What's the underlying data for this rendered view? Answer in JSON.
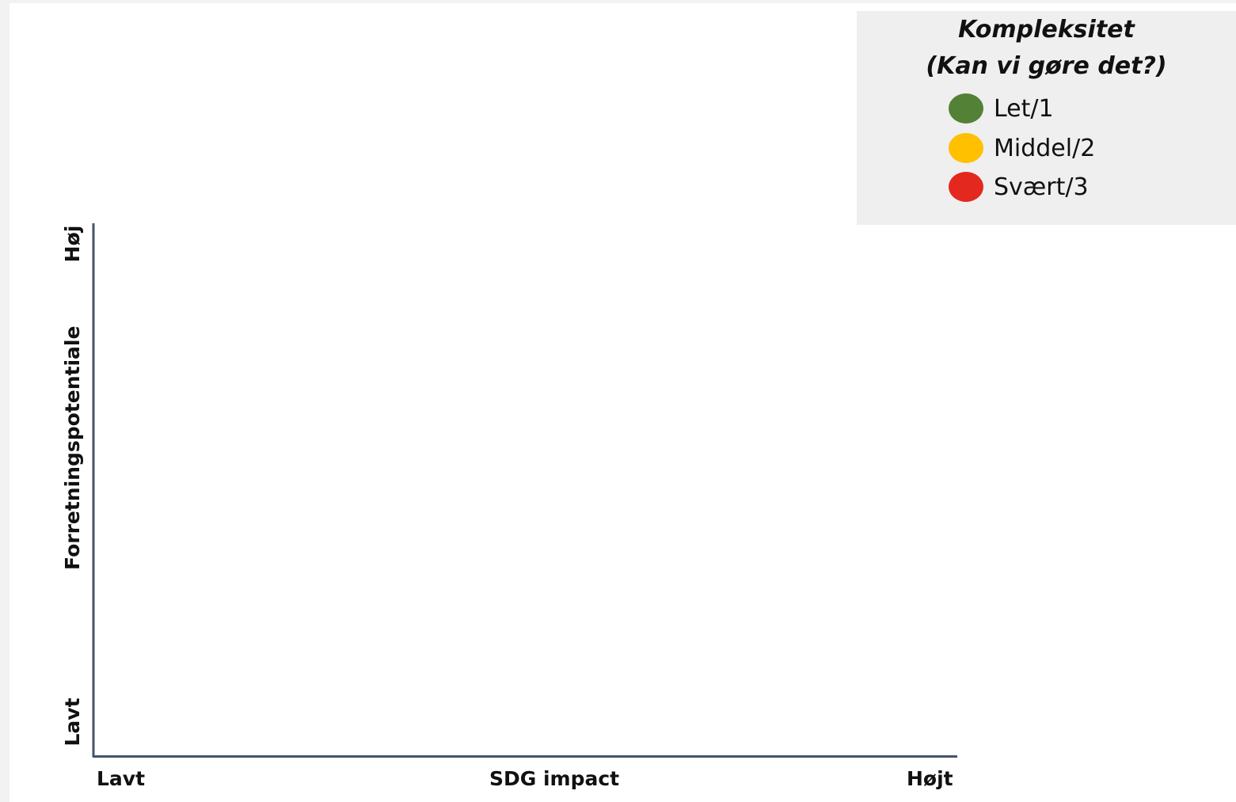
{
  "legend": {
    "title_line1": "Kompleksitet",
    "title_line2": "(Kan vi gøre det?)",
    "items": [
      {
        "label": "Let/1",
        "color": "#538135"
      },
      {
        "label": "Middel/2",
        "color": "#ffc000"
      },
      {
        "label": "Svært/3",
        "color": "#e3281f"
      }
    ]
  },
  "x_axis": {
    "title": "SDG impact",
    "low": "Lavt",
    "high": "Højt"
  },
  "y_axis": {
    "title": "Forretningspotentiale",
    "low": "Lavt",
    "high": "Høj"
  },
  "colors": {
    "axis": "#44546a",
    "background": "#ffffff",
    "legend_background": "#efefef"
  }
}
